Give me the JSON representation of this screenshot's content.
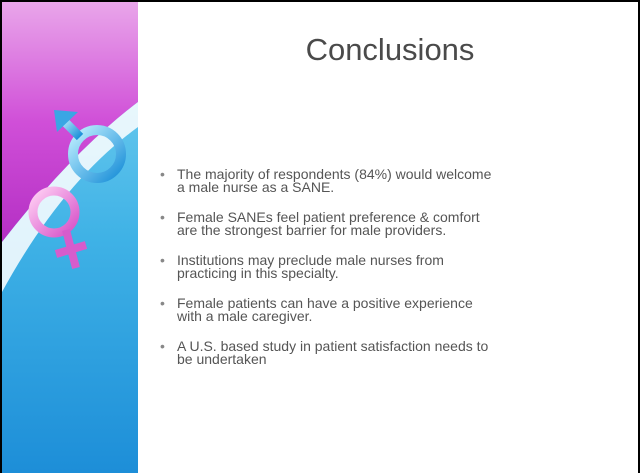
{
  "title": "Conclusions",
  "bullets": [
    "The majority of respondents (84%) would welcome a male nurse as a SANE.",
    "Female SANEs feel patient preference & comfort are the strongest barrier for male providers.",
    "Institutions may preclude male nurses from practicing in this specialty.",
    "Female patients can have a positive experience with a male caregiver.",
    "A U.S. based study in patient satisfaction needs to be undertaken"
  ]
}
